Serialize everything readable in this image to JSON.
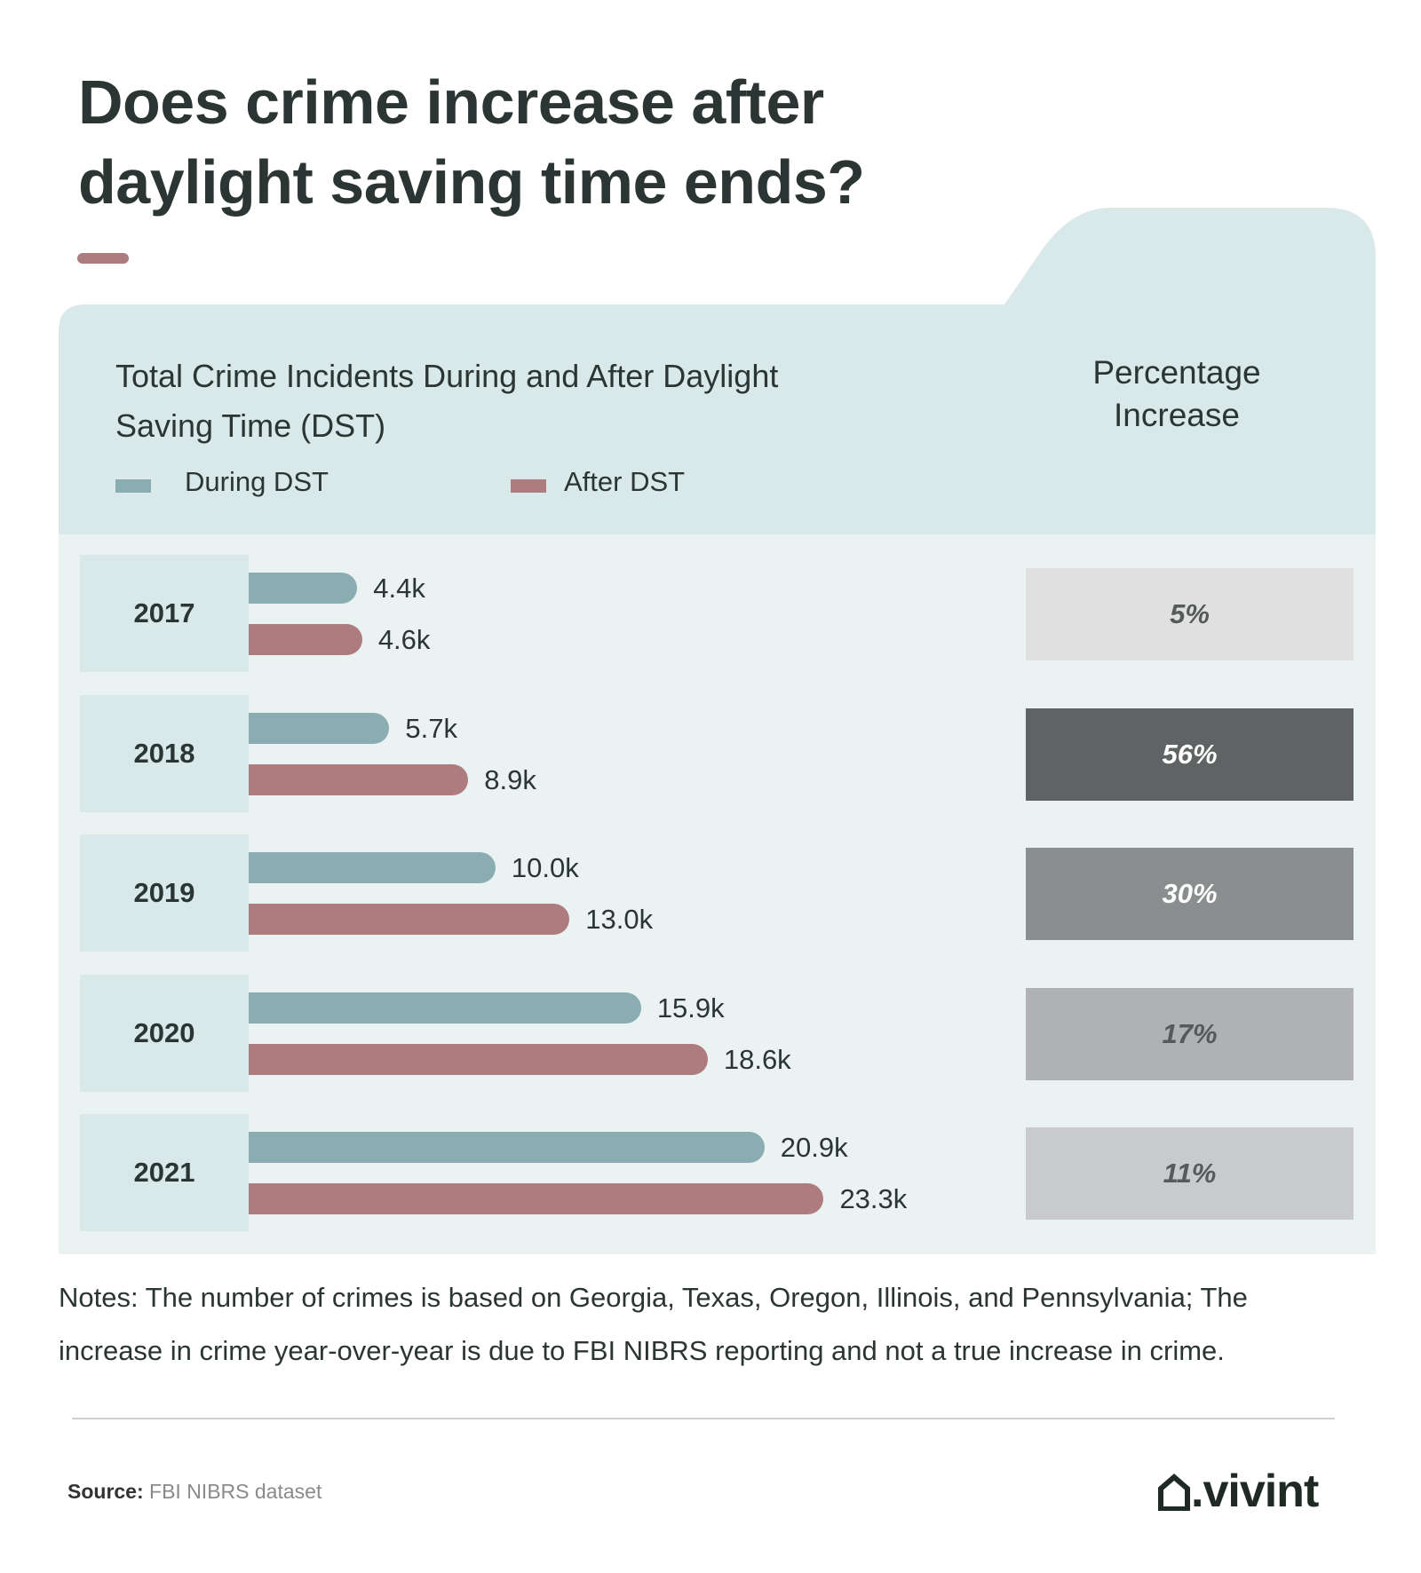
{
  "title_lines": [
    "Does crime increase after",
    "daylight saving time ends?"
  ],
  "chart_data": {
    "type": "bar",
    "orientation": "horizontal",
    "title_lines": [
      "Total Crime Incidents During and After Daylight",
      "Saving Time (DST)"
    ],
    "categories": [
      "2017",
      "2018",
      "2019",
      "2020",
      "2021"
    ],
    "series": [
      {
        "name": "During DST",
        "color": "#8aadb2",
        "values": [
          4.4,
          5.7,
          10.0,
          15.9,
          20.9
        ],
        "labels": [
          "4.4k",
          "5.7k",
          "10.0k",
          "15.9k",
          "20.9k"
        ]
      },
      {
        "name": "After DST",
        "color": "#ad7c7e",
        "values": [
          4.6,
          8.9,
          13.0,
          18.6,
          23.3
        ],
        "labels": [
          "4.6k",
          "8.9k",
          "13.0k",
          "18.6k",
          "23.3k"
        ]
      }
    ],
    "unit": "thousand incidents",
    "percentage_column": {
      "title_lines": [
        "Percentage",
        "Increase"
      ],
      "values": [
        "5%",
        "56%",
        "30%",
        "17%",
        "11%"
      ],
      "colors": [
        "#e0e0e0",
        "#5f6364",
        "#8b8e8e",
        "#b0b1b2",
        "#c9cacb"
      ],
      "text_colors": [
        "#555a5a",
        "#ffffff",
        "#ffffff",
        "#555a5a",
        "#555a5a"
      ]
    },
    "legend_position": "top-left",
    "grid": false
  },
  "notes_lines": [
    "Notes: The number of crimes is based on Georgia, Texas, Oregon, Illinois, and Pennsylvania; The",
    "increase in crime year-over-year is due to FBI NIBRS reporting and not a true increase in crime."
  ],
  "source": {
    "label": "Source:",
    "value": "FBI NIBRS dataset"
  },
  "logo": {
    "text": ".vivint",
    "icon": "house-icon"
  },
  "colors": {
    "accent": "#ad7c7e",
    "header_bg": "#d9e8e8",
    "body_bg": "#ebf2f2",
    "text": "#2b3634"
  }
}
